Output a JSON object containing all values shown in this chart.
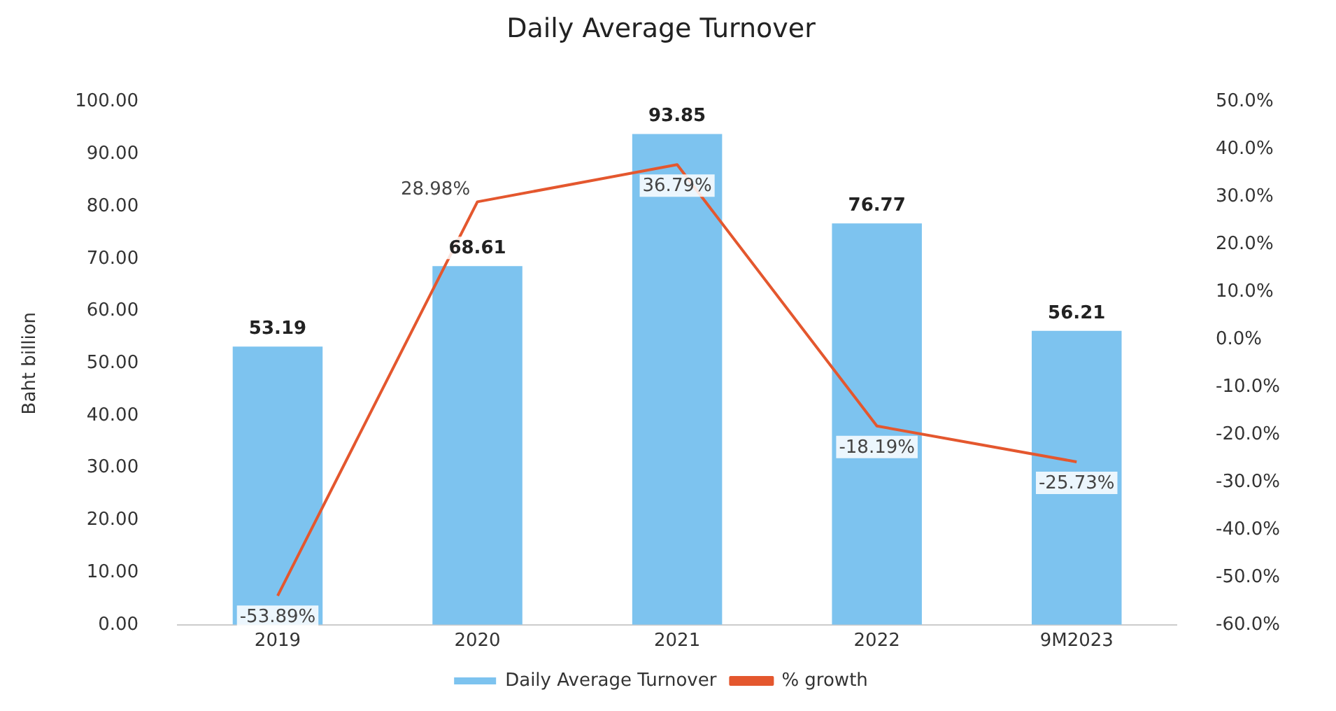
{
  "chart_data": {
    "type": "bar",
    "title": "Daily Average Turnover",
    "ylabel": "Baht billion",
    "categories": [
      "2019",
      "2020",
      "2021",
      "2022",
      "9M2023"
    ],
    "series": [
      {
        "name": "Daily Average Turnover",
        "color": "#7dc3ef",
        "values": [
          53.19,
          68.61,
          93.85,
          76.77,
          56.21
        ],
        "value_labels": [
          "53.19",
          "68.61",
          "93.85",
          "76.77",
          "56.21"
        ]
      },
      {
        "name": "% growth",
        "type": "line",
        "axis": "y2",
        "color": "#e4572e",
        "values": [
          -53.89,
          28.98,
          36.79,
          -18.19,
          -25.73
        ],
        "value_labels": [
          "-53.89%",
          "28.98%",
          "36.79%",
          "-18.19%",
          "-25.73%"
        ]
      }
    ],
    "ylim": [
      0,
      100
    ],
    "yticks": [
      {
        "value": 0,
        "label": "0.00"
      },
      {
        "value": 10,
        "label": "10.00"
      },
      {
        "value": 20,
        "label": "20.00"
      },
      {
        "value": 30,
        "label": "30.00"
      },
      {
        "value": 40,
        "label": "40.00"
      },
      {
        "value": 50,
        "label": "50.00"
      },
      {
        "value": 60,
        "label": "60.00"
      },
      {
        "value": 70,
        "label": "70.00"
      },
      {
        "value": 80,
        "label": "80.00"
      },
      {
        "value": 90,
        "label": "90.00"
      },
      {
        "value": 100,
        "label": "100.00"
      }
    ],
    "y2lim": [
      -60,
      50
    ],
    "y2ticks": [
      {
        "value": -60,
        "label": "-60.0%"
      },
      {
        "value": -50,
        "label": "-50.0%"
      },
      {
        "value": -40,
        "label": "-40.0%"
      },
      {
        "value": -30,
        "label": "-30.0%"
      },
      {
        "value": -20,
        "label": "-20.0%"
      },
      {
        "value": -10,
        "label": "-10.0%"
      },
      {
        "value": 0,
        "label": "0.0%"
      },
      {
        "value": 10,
        "label": "10.0%"
      },
      {
        "value": 20,
        "label": "20.0%"
      },
      {
        "value": 30,
        "label": "30.0%"
      },
      {
        "value": 40,
        "label": "40.0%"
      },
      {
        "value": 50,
        "label": "50.0%"
      }
    ],
    "grid": false,
    "legend": "bottom",
    "marker": "none"
  }
}
